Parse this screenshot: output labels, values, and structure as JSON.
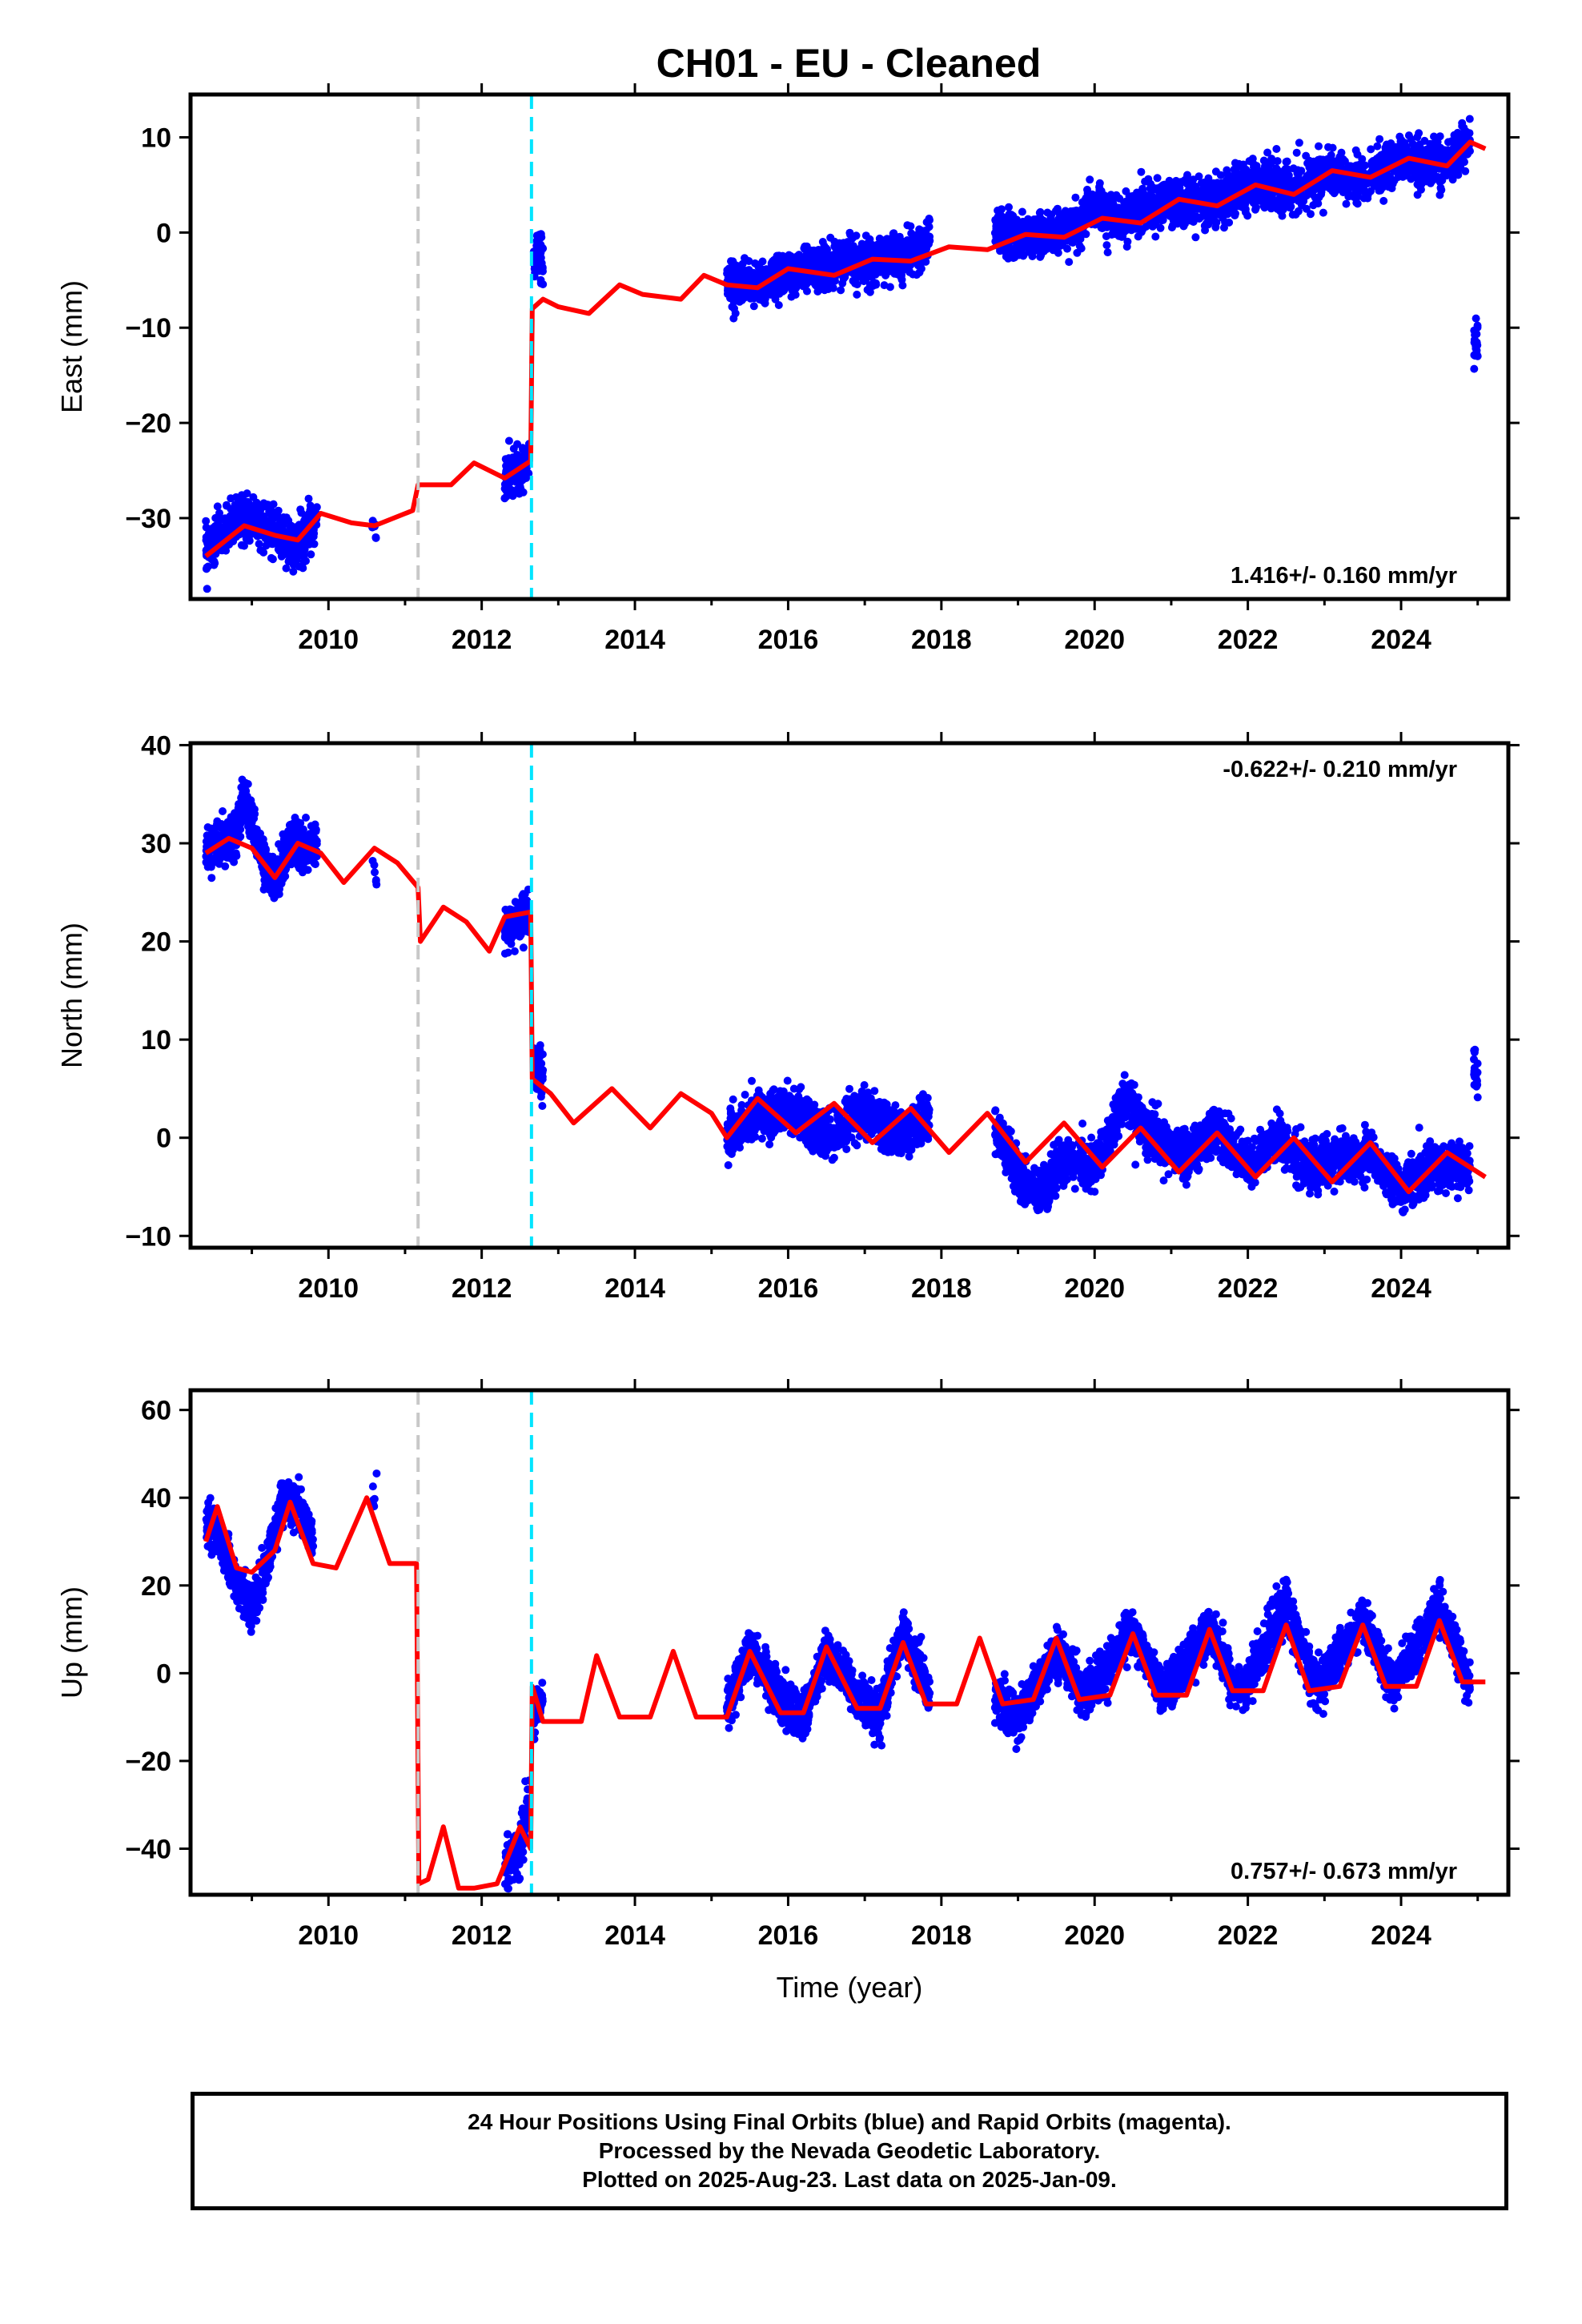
{
  "title": "CH01  - EU - Cleaned",
  "colors": {
    "final_orbits": "#0000ff",
    "model_fit": "#ff0000",
    "antenna_change": "#c8c8c8",
    "earthquake_offset": "#00e5ff",
    "frame": "#000000"
  },
  "footer": {
    "line1": "24 Hour Positions Using Final Orbits (blue) and Rapid Orbits (magenta).",
    "line2": "Processed by the Nevada Geodetic Laboratory.",
    "line3": "Plotted on 2025-Aug-23. Last data on 2025-Jan-09."
  },
  "chart_data": [
    {
      "type": "scatter",
      "component": "east",
      "ylabel": "East (mm)",
      "xlabel": "",
      "xlim": [
        2008.2,
        2025.4
      ],
      "ylim": [
        -38.5,
        14.5
      ],
      "x_ticks": [
        2010,
        2012,
        2014,
        2016,
        2018,
        2020,
        2022,
        2024
      ],
      "y_ticks": [
        -30,
        -20,
        -10,
        0,
        10
      ],
      "y_tick_labels": [
        "−30",
        "−20",
        "−10",
        "0",
        "10"
      ],
      "vlines": [
        {
          "x": 2011.17,
          "style": "gray-dashed"
        },
        {
          "x": 2012.65,
          "style": "cyan-dashed"
        }
      ],
      "rate_text": "1.416+/- 0.160 mm/yr",
      "rate_position": "bottom-right",
      "observed_segments": [
        {
          "x": [
            2008.4,
            2008.6,
            2008.85,
            2009.1,
            2009.3,
            2009.5,
            2009.7,
            2009.85
          ],
          "y": [
            -33.5,
            -32,
            -30,
            -30.5,
            -31,
            -33,
            -32,
            -29.5
          ]
        },
        {
          "x": [
            2010.6
          ],
          "y": [
            -31
          ]
        },
        {
          "x": [
            2012.3,
            2012.5,
            2012.62
          ],
          "y": [
            -25.8,
            -25,
            -23.5
          ]
        },
        {
          "x": [
            2012.68,
            2012.8
          ],
          "y": [
            -2.5,
            -3
          ]
        },
        {
          "x": [
            2015.2,
            2015.5,
            2016.0,
            2016.5,
            2017.0,
            2017.5,
            2017.85
          ],
          "y": [
            -5,
            -5.5,
            -4.5,
            -3.5,
            -3,
            -2.5,
            -1
          ]
        },
        {
          "x": [
            2018.7,
            2019.0,
            2019.5,
            2019.8,
            2020.0,
            2020.3,
            2020.6,
            2021.0,
            2021.5,
            2022.0,
            2022.5,
            2023.0,
            2023.5,
            2024.0,
            2024.5,
            2024.9
          ],
          "y": [
            0.5,
            -0.5,
            0,
            1,
            3,
            1,
            2.5,
            3,
            3,
            5,
            4.5,
            6,
            5.5,
            8,
            7,
            9.5
          ]
        },
        {
          "x": [
            2024.95,
            2025.0
          ],
          "y": [
            -11.5,
            -11
          ]
        }
      ],
      "model": {
        "x": [
          2008.4,
          2008.9,
          2009.3,
          2009.6,
          2009.9,
          2010.3,
          2010.6,
          2011.1,
          2011.17,
          2011.6,
          2011.9,
          2012.3,
          2012.64,
          2012.66,
          2012.8,
          2013.0,
          2013.4,
          2013.8,
          2014.1,
          2014.6,
          2014.9,
          2015.2,
          2015.6,
          2016.0,
          2016.6,
          2017.1,
          2017.6,
          2018.1,
          2018.6,
          2019.1,
          2019.6,
          2020.1,
          2020.6,
          2021.1,
          2021.6,
          2022.1,
          2022.6,
          2023.1,
          2023.6,
          2024.1,
          2024.6,
          2024.9,
          2025.1
        ],
        "y": [
          -34,
          -30.8,
          -31.8,
          -32.3,
          -29.5,
          -30.5,
          -30.8,
          -29.2,
          -26.5,
          -26.5,
          -24.2,
          -25.8,
          -24,
          -8,
          -7,
          -7.8,
          -8.5,
          -5.5,
          -6.5,
          -7,
          -4.5,
          -5.5,
          -5.8,
          -3.8,
          -4.5,
          -2.8,
          -3,
          -1.5,
          -1.8,
          -0.2,
          -0.5,
          1.5,
          1,
          3.5,
          2.8,
          5,
          4,
          6.5,
          5.8,
          7.8,
          7,
          9.5,
          8.8
        ]
      }
    },
    {
      "type": "scatter",
      "component": "north",
      "ylabel": "North (mm)",
      "xlabel": "",
      "xlim": [
        2008.2,
        2025.4
      ],
      "ylim": [
        -11.2,
        40.2
      ],
      "x_ticks": [
        2010,
        2012,
        2014,
        2016,
        2018,
        2020,
        2022,
        2024
      ],
      "y_ticks": [
        -10,
        0,
        10,
        20,
        30,
        40
      ],
      "y_tick_labels": [
        "−10",
        "0",
        "10",
        "20",
        "30",
        "40"
      ],
      "vlines": [
        {
          "x": 2011.17,
          "style": "gray-dashed"
        },
        {
          "x": 2012.65,
          "style": "cyan-dashed"
        }
      ],
      "rate_text": "-0.622+/- 0.210 mm/yr",
      "rate_position": "top-right",
      "observed_segments": [
        {
          "x": [
            2008.4,
            2008.6,
            2008.8,
            2008.9,
            2009.1,
            2009.3,
            2009.5,
            2009.7,
            2009.85
          ],
          "y": [
            29,
            30,
            31,
            35,
            29,
            26,
            30,
            29.5,
            30
          ]
        },
        {
          "x": [
            2010.6
          ],
          "y": [
            27
          ]
        },
        {
          "x": [
            2012.3,
            2012.5,
            2012.62
          ],
          "y": [
            21,
            22.5,
            23
          ]
        },
        {
          "x": [
            2012.68,
            2012.8
          ],
          "y": [
            7,
            6.5
          ]
        },
        {
          "x": [
            2015.2,
            2015.5,
            2016.0,
            2016.5,
            2017.0,
            2017.5,
            2017.85
          ],
          "y": [
            0,
            2,
            3,
            0,
            3,
            0,
            2
          ]
        },
        {
          "x": [
            2018.7,
            2019.0,
            2019.3,
            2019.6,
            2020.0,
            2020.4,
            2020.8,
            2021.2,
            2021.6,
            2022.0,
            2022.4,
            2022.8,
            2023.2,
            2023.6,
            2024.0,
            2024.4,
            2024.9
          ],
          "y": [
            1,
            -4,
            -6,
            -2,
            -3,
            4,
            0,
            -2,
            1,
            -3,
            0,
            -3,
            -2,
            -2,
            -5,
            -3,
            -3
          ]
        },
        {
          "x": [
            2024.95,
            2025.0
          ],
          "y": [
            7,
            6
          ]
        }
      ],
      "model": {
        "x": [
          2008.4,
          2008.7,
          2009.0,
          2009.3,
          2009.6,
          2009.9,
          2010.2,
          2010.6,
          2010.9,
          2011.17,
          2011.2,
          2011.5,
          2011.8,
          2012.1,
          2012.3,
          2012.64,
          2012.66,
          2012.9,
          2013.2,
          2013.7,
          2014.2,
          2014.6,
          2015.0,
          2015.2,
          2015.6,
          2016.1,
          2016.6,
          2017.1,
          2017.6,
          2018.1,
          2018.6,
          2019.1,
          2019.6,
          2020.1,
          2020.6,
          2021.1,
          2021.6,
          2022.1,
          2022.6,
          2023.1,
          2023.6,
          2024.1,
          2024.6,
          2025.1
        ],
        "y": [
          29,
          30.5,
          29.5,
          26.5,
          30,
          29,
          26,
          29.5,
          28,
          25.5,
          20,
          23.5,
          22,
          19,
          22.5,
          23,
          6,
          4.5,
          1.5,
          5,
          1,
          4.5,
          2.5,
          0,
          4,
          0.5,
          3.5,
          -0.5,
          3,
          -1.5,
          2.5,
          -2.5,
          1.5,
          -3,
          1,
          -3.5,
          0.5,
          -4,
          0,
          -4.5,
          -0.5,
          -5.5,
          -1.5,
          -4
        ]
      }
    },
    {
      "type": "scatter",
      "component": "up",
      "ylabel": "Up (mm)",
      "xlabel": "Time (year)",
      "xlim": [
        2008.2,
        2025.4
      ],
      "ylim": [
        -50.5,
        64.5
      ],
      "x_ticks": [
        2010,
        2012,
        2014,
        2016,
        2018,
        2020,
        2022,
        2024
      ],
      "y_ticks": [
        -40,
        -20,
        0,
        20,
        40,
        60
      ],
      "y_tick_labels": [
        "−40",
        "−20",
        "0",
        "20",
        "40",
        "60"
      ],
      "vlines": [
        {
          "x": 2011.17,
          "style": "gray-dashed"
        },
        {
          "x": 2012.65,
          "style": "cyan-dashed"
        }
      ],
      "rate_text": "0.757+/- 0.673 mm/yr",
      "rate_position": "bottom-right",
      "observed_segments": [
        {
          "x": [
            2008.4,
            2008.6,
            2008.8,
            2009.0,
            2009.2,
            2009.4,
            2009.6,
            2009.8
          ],
          "y": [
            35,
            30,
            20,
            15,
            25,
            40,
            38,
            30
          ]
        },
        {
          "x": [
            2010.6
          ],
          "y": [
            40
          ]
        },
        {
          "x": [
            2012.3,
            2012.5,
            2012.62
          ],
          "y": [
            -45,
            -40,
            -30
          ]
        },
        {
          "x": [
            2012.68,
            2012.8
          ],
          "y": [
            -10,
            -5
          ]
        },
        {
          "x": [
            2015.2,
            2015.5,
            2015.9,
            2016.2,
            2016.5,
            2016.9,
            2017.2,
            2017.5,
            2017.85
          ],
          "y": [
            -8,
            5,
            -5,
            -10,
            5,
            -5,
            -10,
            10,
            -5
          ]
        },
        {
          "x": [
            2018.7,
            2019.0,
            2019.5,
            2019.9,
            2020.5,
            2020.9,
            2021.5,
            2021.9,
            2022.5,
            2022.9,
            2023.5,
            2023.9,
            2024.5,
            2024.9
          ],
          "y": [
            -5,
            -10,
            5,
            -5,
            10,
            -5,
            10,
            -5,
            15,
            -3,
            12,
            -3,
            15,
            -3
          ]
        }
      ],
      "model": {
        "x": [
          2008.4,
          2008.55,
          2008.8,
          2009.0,
          2009.3,
          2009.5,
          2009.8,
          2010.1,
          2010.5,
          2010.8,
          2011.15,
          2011.18,
          2011.3,
          2011.5,
          2011.7,
          2011.9,
          2012.2,
          2012.5,
          2012.64,
          2012.66,
          2012.8,
          2013.0,
          2013.3,
          2013.5,
          2013.8,
          2014.2,
          2014.5,
          2014.8,
          2015.2,
          2015.5,
          2015.9,
          2016.2,
          2016.5,
          2016.9,
          2017.2,
          2017.5,
          2017.8,
          2018.2,
          2018.5,
          2018.8,
          2019.2,
          2019.5,
          2019.8,
          2020.2,
          2020.5,
          2020.8,
          2021.2,
          2021.5,
          2021.8,
          2022.2,
          2022.5,
          2022.8,
          2023.2,
          2023.5,
          2023.8,
          2024.2,
          2024.5,
          2024.8,
          2025.1
        ],
        "y": [
          30,
          38,
          24,
          23,
          28,
          39,
          25,
          24,
          40,
          25,
          25,
          -48,
          -47,
          -35,
          -49,
          -49,
          -48,
          -35,
          -40,
          -3,
          -11,
          -11,
          -11,
          4,
          -10,
          -10,
          5,
          -10,
          -10,
          5,
          -9,
          -9,
          6,
          -8,
          -8,
          7,
          -7,
          -7,
          8,
          -7,
          -6,
          8,
          -6,
          -5,
          9,
          -5,
          -5,
          10,
          -4,
          -4,
          11,
          -4,
          -3,
          11,
          -3,
          -3,
          12,
          -2,
          -2
        ]
      }
    }
  ]
}
